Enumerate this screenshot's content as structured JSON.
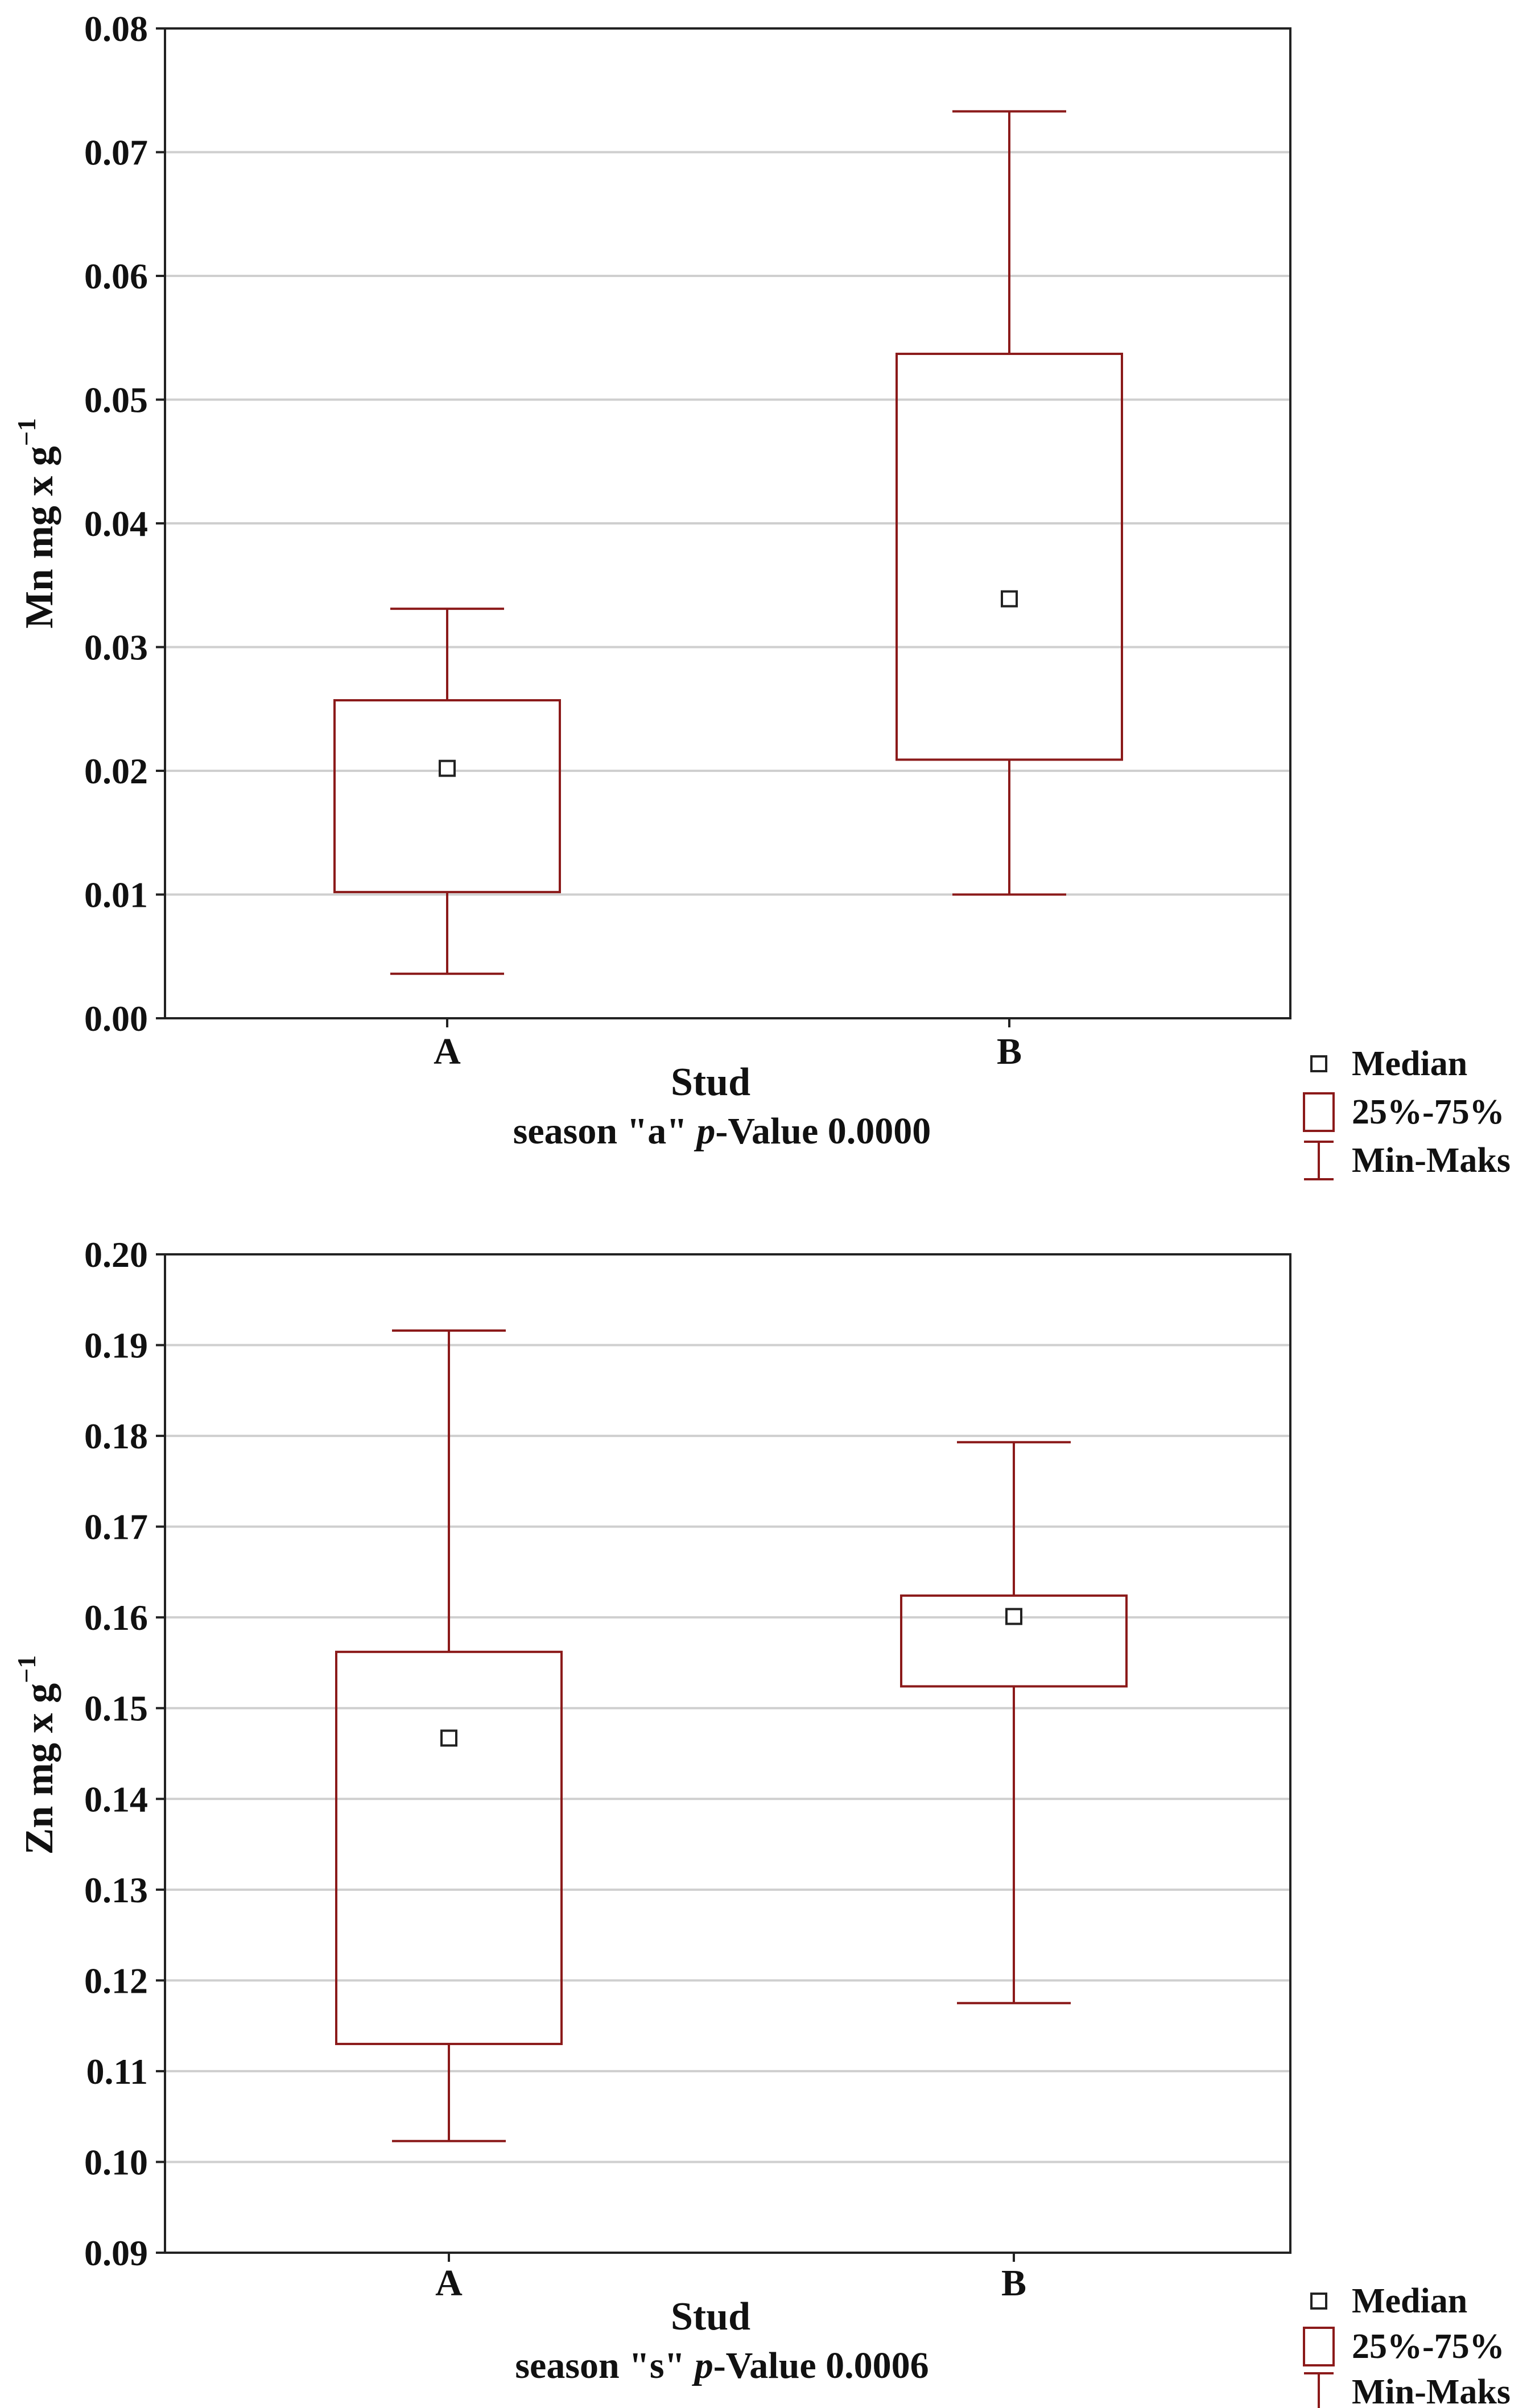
{
  "colors": {
    "box": "#8b1a1a",
    "axis": "#222222",
    "grid": "#cfcfcf",
    "median": "#222222",
    "background": "#ffffff"
  },
  "chart_data": [
    {
      "type": "box",
      "ylabel_main": "Mn  mg x g",
      "ylabel_sup": "−1",
      "xlabel": "Stud",
      "subtitle_prefix": "season \"a\" ",
      "subtitle_p": "p",
      "subtitle_suffix": "-Value 0.0000",
      "ylim": [
        0.0,
        0.08
      ],
      "yticks": [
        0.0,
        0.01,
        0.02,
        0.03,
        0.04,
        0.05,
        0.06,
        0.07,
        0.08
      ],
      "ytick_labels": [
        "0.00",
        "0.01",
        "0.02",
        "0.03",
        "0.04",
        "0.05",
        "0.06",
        "0.07",
        "0.08"
      ],
      "grid": true,
      "categories": [
        "A",
        "B"
      ],
      "boxes": [
        {
          "category": "A",
          "min": 0.0036,
          "q1": 0.0102,
          "median": 0.0202,
          "q3": 0.0257,
          "max": 0.0331
        },
        {
          "category": "B",
          "min": 0.01,
          "q1": 0.0209,
          "median": 0.0339,
          "q3": 0.0537,
          "max": 0.0733
        }
      ],
      "legend": {
        "median": "Median",
        "box": "25%-75%",
        "whisker": "Min-Maks"
      }
    },
    {
      "type": "box",
      "ylabel_main": "Zn mg x g",
      "ylabel_sup": "−1",
      "xlabel": "Stud",
      "subtitle_prefix": "season \"s\"  ",
      "subtitle_p": "p",
      "subtitle_suffix": "-Value 0.0006",
      "ylim": [
        0.09,
        0.2
      ],
      "yticks": [
        0.09,
        0.1,
        0.11,
        0.12,
        0.13,
        0.14,
        0.15,
        0.16,
        0.17,
        0.18,
        0.19,
        0.2
      ],
      "ytick_labels": [
        "0.09",
        "0.10",
        "0.11",
        "0.12",
        "0.13",
        "0.14",
        "0.15",
        "0.16",
        "0.17",
        "0.18",
        "0.19",
        "0.20"
      ],
      "grid": true,
      "categories": [
        "A",
        "B"
      ],
      "boxes": [
        {
          "category": "A",
          "min": 0.1023,
          "q1": 0.113,
          "median": 0.1467,
          "q3": 0.1562,
          "max": 0.1916
        },
        {
          "category": "B",
          "min": 0.1175,
          "q1": 0.1524,
          "median": 0.1601,
          "q3": 0.1624,
          "max": 0.1793
        }
      ],
      "legend": {
        "median": "Median",
        "box": "25%-75%",
        "whisker": "Min-Maks"
      }
    }
  ]
}
